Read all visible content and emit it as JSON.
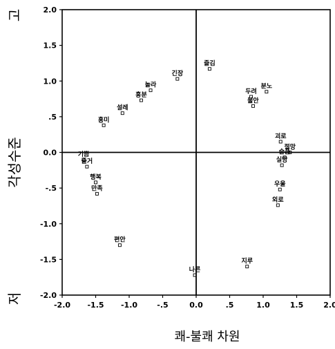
{
  "chart_data": {
    "type": "scatter",
    "xlabel": "쾌-불쾌 차원",
    "ylabel": "각성수준",
    "y_high_label": "고",
    "y_low_label": "저",
    "xlim": [
      -2.0,
      2.0
    ],
    "ylim": [
      -2.0,
      2.0
    ],
    "x_ticks": [
      "-2.0",
      "-1.5",
      "-1.0",
      "-.5",
      "0.0",
      ".5",
      "1.0",
      "1.5",
      "2.0"
    ],
    "y_ticks": [
      "2.0",
      "1.5",
      "1.0",
      ".5",
      "0.0",
      "-.5",
      "-1.0",
      "-1.5",
      "-2.0"
    ],
    "points": [
      {
        "label": "즐김",
        "x": 0.2,
        "y": 1.17
      },
      {
        "label": "긴장",
        "x": -0.28,
        "y": 1.03
      },
      {
        "label": "놀라",
        "x": -0.68,
        "y": 0.87
      },
      {
        "label": "흥분",
        "x": -0.82,
        "y": 0.73
      },
      {
        "label": "설레",
        "x": -1.1,
        "y": 0.55
      },
      {
        "label": "흥미",
        "x": -1.38,
        "y": 0.38
      },
      {
        "label": "분노",
        "x": 1.05,
        "y": 0.85
      },
      {
        "label": "두려",
        "x": 0.82,
        "y": 0.78
      },
      {
        "label": "불안",
        "x": 0.85,
        "y": 0.65
      },
      {
        "label": "괴로",
        "x": 1.26,
        "y": 0.15
      },
      {
        "label": "절망",
        "x": 1.4,
        "y": 0.0
      },
      {
        "label": "슬픔",
        "x": 1.32,
        "y": -0.07
      },
      {
        "label": "실망",
        "x": 1.28,
        "y": -0.18
      },
      {
        "label": "우울",
        "x": 1.25,
        "y": -0.52
      },
      {
        "label": "외로",
        "x": 1.22,
        "y": -0.74
      },
      {
        "label": "기쁨",
        "x": -1.68,
        "y": -0.1
      },
      {
        "label": "즐거",
        "x": -1.63,
        "y": -0.2
      },
      {
        "label": "행복",
        "x": -1.5,
        "y": -0.42
      },
      {
        "label": "만족",
        "x": -1.48,
        "y": -0.58
      },
      {
        "label": "편안",
        "x": -1.14,
        "y": -1.3
      },
      {
        "label": "나른",
        "x": -0.02,
        "y": -1.72
      },
      {
        "label": "지루",
        "x": 0.76,
        "y": -1.6
      }
    ]
  }
}
